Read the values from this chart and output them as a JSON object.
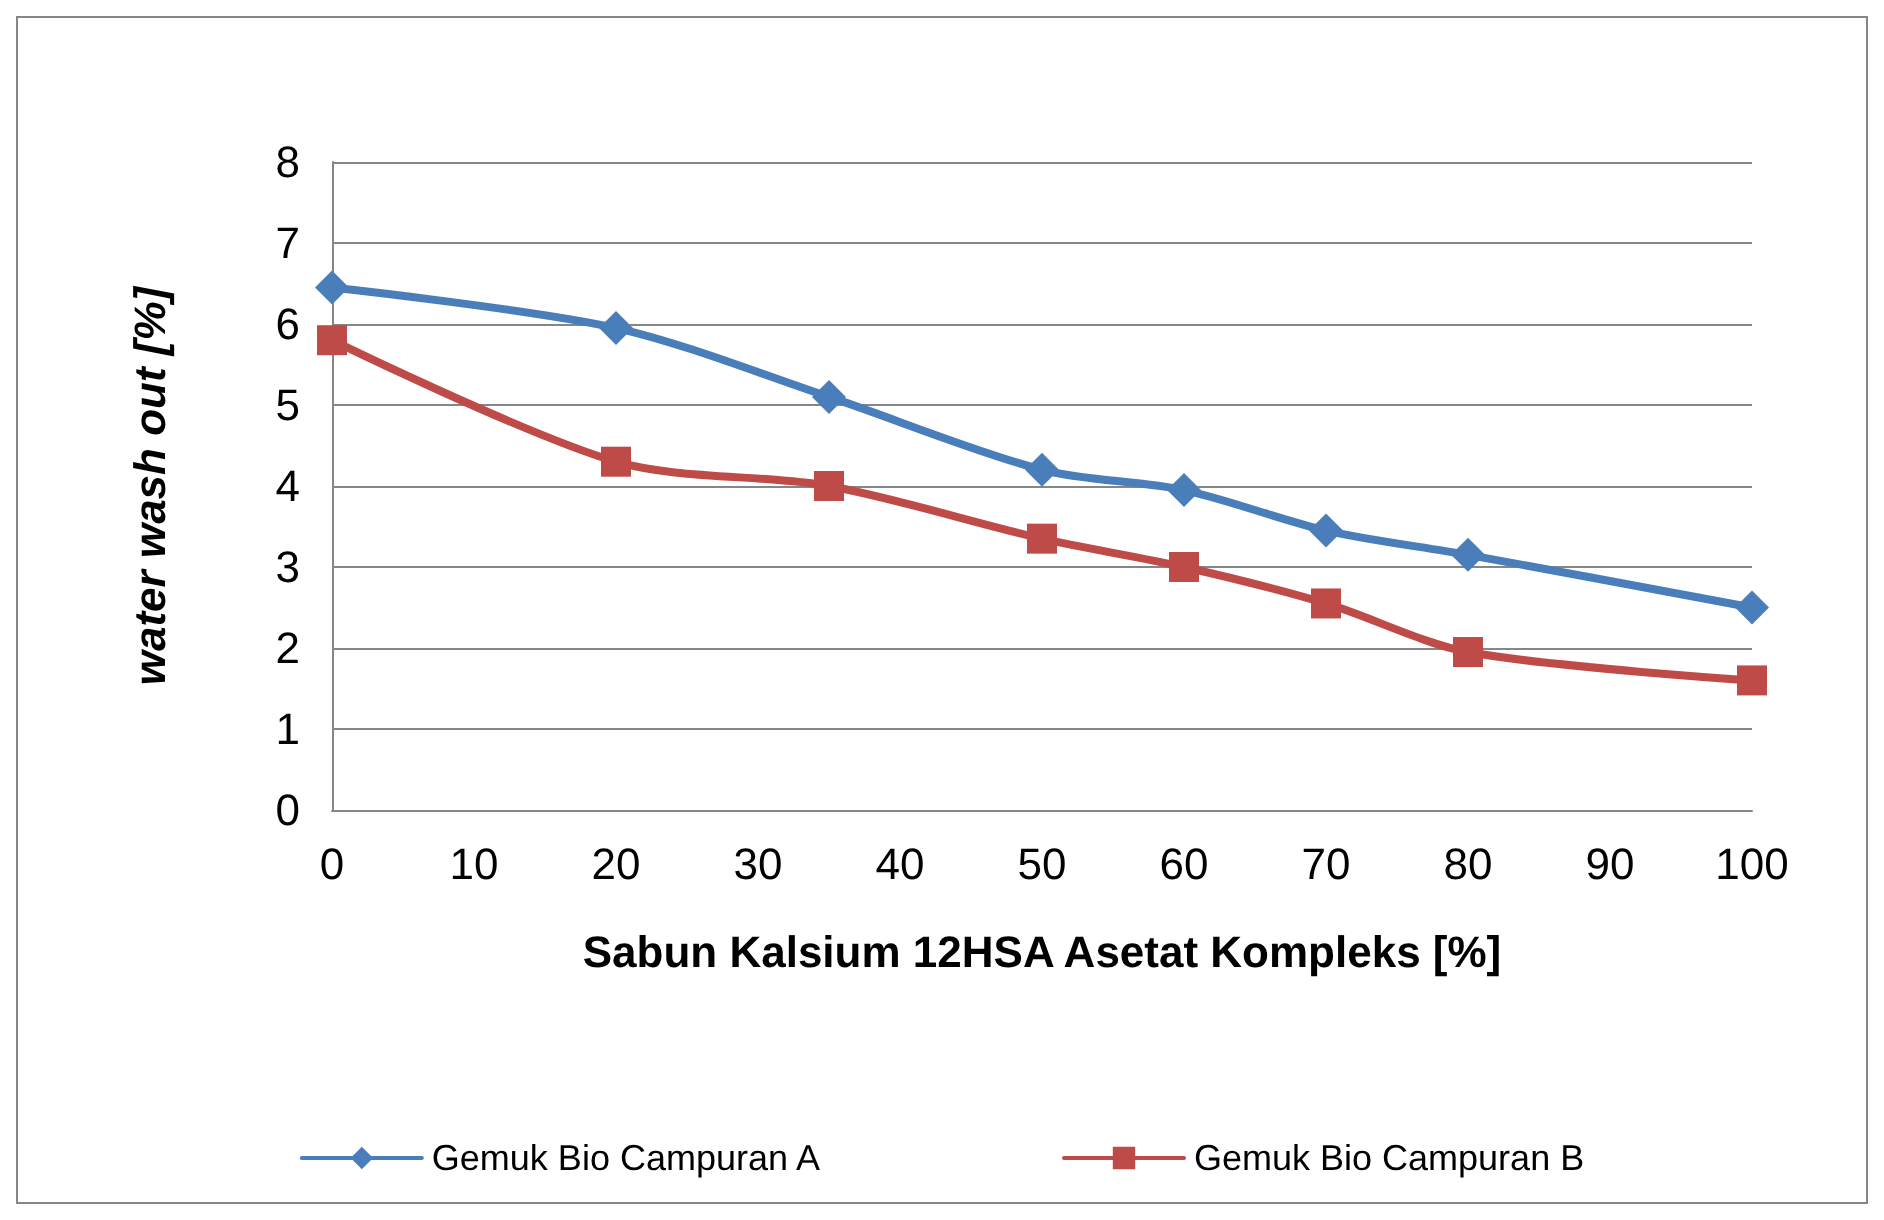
{
  "chart_data": {
    "type": "line",
    "xlabel": "Sabun Kalsium 12HSA Asetat Kompleks [%]",
    "ylabel": "water wash out [%]",
    "x": [
      0,
      20,
      35,
      50,
      60,
      70,
      80,
      100
    ],
    "series": [
      {
        "name": "Gemuk Bio Campuran A",
        "color": "#4a7ebb",
        "marker": "diamond",
        "values": [
          6.45,
          5.95,
          5.1,
          4.2,
          3.95,
          3.45,
          3.15,
          2.5
        ]
      },
      {
        "name": "Gemuk Bio Campuran B",
        "color": "#be4b48",
        "marker": "square",
        "values": [
          5.8,
          4.3,
          4.0,
          3.35,
          3.0,
          2.55,
          1.95,
          1.6
        ]
      }
    ],
    "xlim": [
      0,
      100
    ],
    "xticks": [
      0,
      10,
      20,
      30,
      40,
      50,
      60,
      70,
      80,
      90,
      100
    ],
    "ylim": [
      0,
      8
    ],
    "yticks": [
      0,
      1,
      2,
      3,
      4,
      5,
      6,
      7,
      8
    ],
    "grid": "y",
    "legend": "bottom",
    "line_style": "solid"
  }
}
